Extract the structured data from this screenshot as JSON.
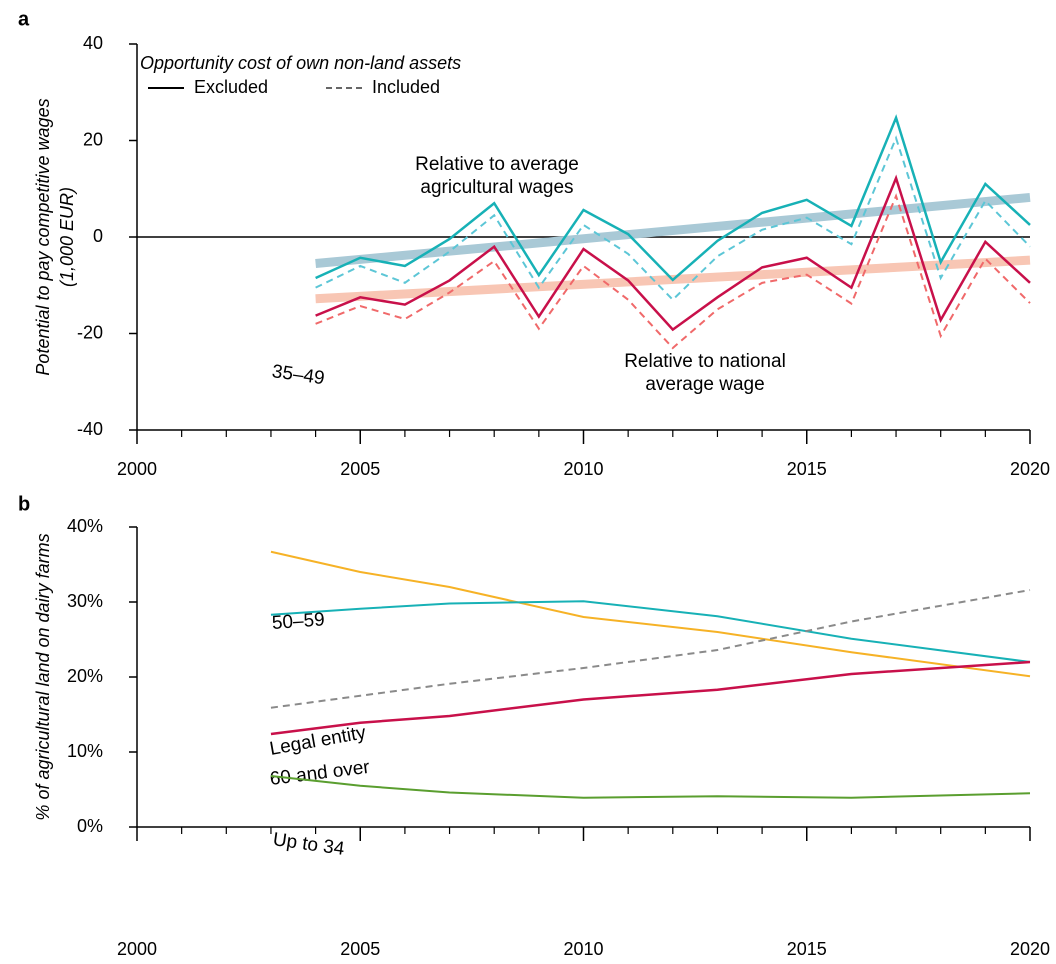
{
  "chart_data": [
    {
      "type": "line",
      "panel_label": "a",
      "ylabel": [
        "Potential to pay competitive wages",
        "(1,000 EUR)"
      ],
      "x": [
        2004,
        2005,
        2006,
        2007,
        2008,
        2009,
        2010,
        2011,
        2012,
        2013,
        2014,
        2015,
        2016,
        2017,
        2018,
        2019,
        2020
      ],
      "xlim": [
        2000,
        2020
      ],
      "xticks": [
        2000,
        2005,
        2010,
        2015,
        2020
      ],
      "xminorticks": [
        2001,
        2002,
        2003,
        2004,
        2006,
        2007,
        2008,
        2009,
        2011,
        2012,
        2013,
        2014,
        2016,
        2017,
        2018,
        2019
      ],
      "ylim": [
        -40,
        40
      ],
      "yticks": [
        -40,
        -20,
        0,
        20,
        40
      ],
      "zero_line": true,
      "legend": {
        "title": "Opportunity cost of own non-land assets",
        "entries": [
          {
            "label": "Excluded",
            "dashed": false,
            "color": "#000000"
          },
          {
            "label": "Included",
            "dashed": true,
            "color": "#666666"
          }
        ]
      },
      "annotations": [
        {
          "lines": [
            "Relative to average",
            "agricultural wages"
          ],
          "color": "#11999c"
        },
        {
          "lines": [
            "Relative to national",
            "average wage"
          ],
          "color": "#cc1150"
        }
      ],
      "series": [
        {
          "x": [
            2004,
            2020
          ],
          "values": [
            -5.5,
            8.2
          ],
          "color": "#a9c9d6",
          "width": 9,
          "dashed": false
        },
        {
          "x": [
            2004,
            2020
          ],
          "values": [
            -12.8,
            -4.8
          ],
          "color": "#f8c6b4",
          "width": 9,
          "dashed": false
        },
        {
          "values": [
            -10.5,
            -6,
            -9.5,
            -3,
            4.5,
            -10.5,
            2.5,
            -3.5,
            -13,
            -4,
            1.5,
            4,
            -1.5,
            20.5,
            -8.5,
            7.5,
            -2
          ],
          "color": "#5cc6d6",
          "width": 2,
          "dashed": true
        },
        {
          "values": [
            -18,
            -14.3,
            -17,
            -11.5,
            -5,
            -19,
            -6,
            -13,
            -23,
            -15,
            -9.5,
            -7.8,
            -13.8,
            8.5,
            -20.5,
            -4.5,
            -13.7
          ],
          "color": "#f0696a",
          "width": 2,
          "dashed": true
        },
        {
          "values": [
            -8.5,
            -4.3,
            -6,
            -0.4,
            7,
            -7.9,
            5.6,
            0.6,
            -8.9,
            -0.8,
            5,
            7.7,
            2.3,
            24.7,
            -5.2,
            11,
            2.5
          ],
          "color": "#17b1b6",
          "width": 2.5,
          "dashed": false
        },
        {
          "values": [
            -16.3,
            -12.5,
            -14,
            -9,
            -2,
            -16.5,
            -2.5,
            -9,
            -19.2,
            -12.5,
            -6.3,
            -4.3,
            -10.5,
            12.2,
            -17.2,
            -1,
            -9.5
          ],
          "color": "#c8104a",
          "width": 2.5,
          "dashed": false
        }
      ]
    },
    {
      "type": "line",
      "panel_label": "b",
      "ylabel": [
        "% of agricultural land on dairy farms"
      ],
      "x": [
        2003,
        2005,
        2007,
        2010,
        2013,
        2016,
        2020
      ],
      "xlim": [
        2000,
        2020
      ],
      "xticks": [
        2000,
        2005,
        2010,
        2015,
        2020
      ],
      "xminorticks": [
        2001,
        2002,
        2003,
        2004,
        2006,
        2007,
        2008,
        2009,
        2011,
        2012,
        2013,
        2014,
        2016,
        2017,
        2018,
        2019
      ],
      "ylim": [
        0,
        40
      ],
      "yticks": [
        {
          "value": 0,
          "label": "0%"
        },
        {
          "value": 10,
          "label": "10%"
        },
        {
          "value": 20,
          "label": "20%"
        },
        {
          "value": 30,
          "label": "30%"
        },
        {
          "value": 40,
          "label": "40%"
        }
      ],
      "series": [
        {
          "name": "35–49",
          "values": [
            36.7,
            34,
            32,
            28,
            26,
            23.3,
            20.1
          ],
          "color": "#f6b226",
          "label_color": "#9c6a22",
          "width": 2,
          "dashed": false
        },
        {
          "name": "50–59",
          "values": [
            28.3,
            29.1,
            29.8,
            30.1,
            28.1,
            25.1,
            22
          ],
          "color": "#17b1b6",
          "label_color": "#11999c",
          "width": 2,
          "dashed": false
        },
        {
          "name": "Legal entity",
          "values": [
            15.9,
            17.5,
            19.1,
            21.2,
            23.6,
            27.4,
            31.6
          ],
          "color": "#8a8a8a",
          "label_color": "#555555",
          "width": 2,
          "dashed": true
        },
        {
          "name": "60 and over",
          "values": [
            12.4,
            13.9,
            14.8,
            17,
            18.3,
            20.4,
            22
          ],
          "color": "#c8104a",
          "label_color": "#c8104a",
          "width": 2.5,
          "dashed": false
        },
        {
          "name": "Up to 34",
          "values": [
            6.8,
            5.5,
            4.6,
            3.9,
            4.1,
            3.9,
            4.5
          ],
          "color": "#5a9e2f",
          "label_color": "#4a9a2a",
          "width": 2,
          "dashed": false
        }
      ]
    }
  ]
}
